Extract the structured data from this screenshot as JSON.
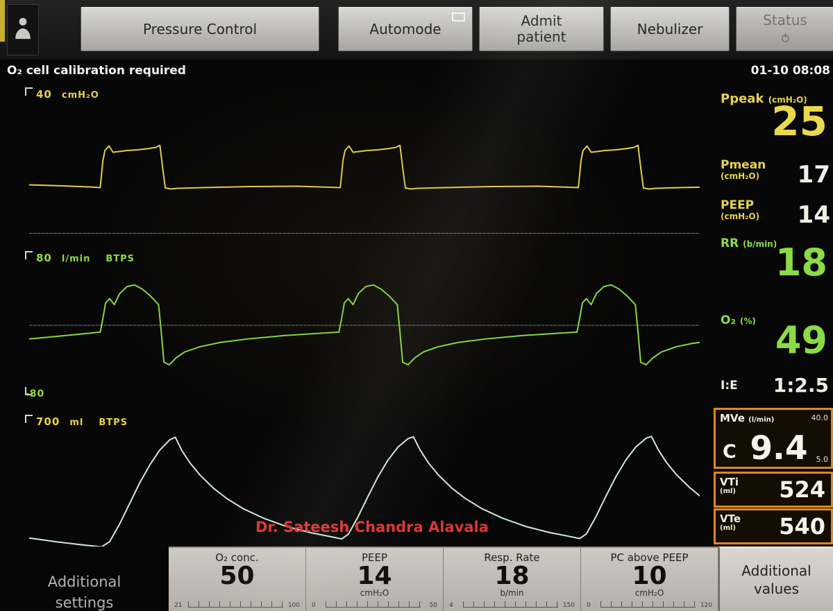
{
  "colors": {
    "yellow": "#e6d24a",
    "green": "#8bdc44",
    "cyan": "#cfe9dc",
    "orange": "#dd8a1e",
    "white": "#efeee3",
    "red": "#de3434"
  },
  "top_bar": {
    "buttons": [
      {
        "label": "Pressure Control"
      },
      {
        "label": "Automode"
      },
      {
        "label": "Admit\npatient"
      },
      {
        "label": "Nebulizer"
      },
      {
        "label": "Status"
      }
    ]
  },
  "status_row": {
    "alert": "O₂ cell calibration required",
    "datetime": "01-10  08:08"
  },
  "waveform_labels": {
    "pressure_scale": "40",
    "pressure_unit": "cmH₂O",
    "flow_scale": "80",
    "flow_unit": "l/min",
    "flow_btps": "BTPS",
    "flow_min": "-80",
    "volume_scale": "700",
    "volume_unit": "ml",
    "volume_btps": "BTPS"
  },
  "measurements": {
    "ppeak": {
      "label": "Ppeak",
      "unit": "(cmH₂O)",
      "value": "25"
    },
    "pmean": {
      "label": "Pmean",
      "unit": "(cmH₂O)",
      "value": "17"
    },
    "peep": {
      "label": "PEEP",
      "unit": "(cmH₂O)",
      "value": "14"
    },
    "rr": {
      "label": "RR",
      "unit": "(b/min)",
      "value": "18"
    },
    "o2": {
      "label": "O₂",
      "unit": "(%)",
      "value": "49"
    },
    "ie": {
      "label": "I:E",
      "value": "1:2.5"
    },
    "mve": {
      "label": "MVe",
      "unit": "(l/min)",
      "prefix": "C",
      "value": "9.4",
      "limit_high": "40.0",
      "limit_low": "5.0"
    },
    "vti": {
      "label": "VTi",
      "unit": "(ml)",
      "value": "524"
    },
    "vte": {
      "label": "VTe",
      "unit": "(ml)",
      "value": "540"
    }
  },
  "bottom_bar": {
    "left_button": {
      "line1": "Additional",
      "line2": "settings"
    },
    "right_button": {
      "line1": "Additional",
      "line2": "values"
    },
    "params": [
      {
        "label": "O₂ conc.",
        "value": "50",
        "unit": "",
        "scale_min": "21",
        "scale_max": "100"
      },
      {
        "label": "PEEP",
        "value": "14",
        "unit": "cmH₂O",
        "scale_min": "0",
        "scale_max": "50"
      },
      {
        "label": "Resp. Rate",
        "value": "18",
        "unit": "b/min",
        "scale_min": "4",
        "scale_max": "150"
      },
      {
        "label": "PC above PEEP",
        "value": "10",
        "unit": "cmH₂O",
        "scale_min": "0",
        "scale_max": "120"
      }
    ]
  },
  "watermark": "Dr. Sateesh Chandra Alavala",
  "chart_data": [
    {
      "type": "line",
      "name": "pressure",
      "title": "Airway pressure waveform",
      "ylabel": "cmH₂O",
      "ylim": [
        -1.5,
        42.5
      ],
      "zero_line": true,
      "stroke": "#e3cf45",
      "points": [
        [
          0,
          14.0
        ],
        [
          5,
          13.7
        ],
        [
          9,
          13.4
        ],
        [
          10.6,
          13.2
        ],
        [
          11.0,
          21
        ],
        [
          11.3,
          23.9
        ],
        [
          11.9,
          25.2
        ],
        [
          12.5,
          23.4
        ],
        [
          13.4,
          23.6
        ],
        [
          14.6,
          23.9
        ],
        [
          16.2,
          24.1
        ],
        [
          17.6,
          24.4
        ],
        [
          18.9,
          24.8
        ],
        [
          19.5,
          25.4
        ],
        [
          19.9,
          19
        ],
        [
          20.3,
          13.1
        ],
        [
          21.1,
          12.8
        ],
        [
          22.2,
          13.0
        ],
        [
          26,
          13.2
        ],
        [
          33,
          13.5
        ],
        [
          40,
          13.6
        ],
        [
          46.4,
          13.2
        ],
        [
          46.8,
          21
        ],
        [
          47.1,
          23.9
        ],
        [
          47.7,
          25.2
        ],
        [
          48.3,
          23.4
        ],
        [
          49.2,
          23.6
        ],
        [
          50.4,
          23.9
        ],
        [
          52.0,
          24.1
        ],
        [
          53.4,
          24.4
        ],
        [
          54.7,
          24.8
        ],
        [
          55.3,
          25.4
        ],
        [
          55.7,
          19
        ],
        [
          56.1,
          13.1
        ],
        [
          56.9,
          12.8
        ],
        [
          58.0,
          13.0
        ],
        [
          62,
          13.2
        ],
        [
          69,
          13.5
        ],
        [
          76,
          13.6
        ],
        [
          81.9,
          13.2
        ],
        [
          82.3,
          21
        ],
        [
          82.6,
          23.9
        ],
        [
          83.2,
          25.2
        ],
        [
          83.8,
          23.4
        ],
        [
          84.7,
          23.6
        ],
        [
          85.9,
          23.9
        ],
        [
          87.5,
          24.1
        ],
        [
          88.9,
          24.4
        ],
        [
          90.2,
          24.8
        ],
        [
          90.8,
          25.4
        ],
        [
          91.2,
          19
        ],
        [
          91.6,
          13.1
        ],
        [
          92.4,
          12.8
        ],
        [
          93.5,
          13.0
        ],
        [
          97,
          13.2
        ],
        [
          100,
          13.3
        ]
      ]
    },
    {
      "type": "line",
      "name": "flow",
      "title": "Flow waveform",
      "ylabel": "l/min",
      "ylim": [
        -88,
        88
      ],
      "zero_line": true,
      "stroke": "#86d93e",
      "points": [
        [
          0,
          -16
        ],
        [
          4,
          -13
        ],
        [
          8,
          -10
        ],
        [
          10.6,
          -8
        ],
        [
          11.0,
          8
        ],
        [
          11.4,
          26
        ],
        [
          12.0,
          31
        ],
        [
          12.7,
          24
        ],
        [
          13.5,
          37
        ],
        [
          14.6,
          45
        ],
        [
          15.7,
          47
        ],
        [
          16.9,
          42
        ],
        [
          18.1,
          34
        ],
        [
          19.3,
          24
        ],
        [
          19.7,
          -8
        ],
        [
          20.1,
          -43
        ],
        [
          20.9,
          -46
        ],
        [
          21.9,
          -38
        ],
        [
          23.2,
          -31
        ],
        [
          25.5,
          -25
        ],
        [
          28.5,
          -20
        ],
        [
          32.5,
          -16
        ],
        [
          38,
          -12
        ],
        [
          44,
          -9
        ],
        [
          46.2,
          -8
        ],
        [
          46.6,
          8
        ],
        [
          47.0,
          26
        ],
        [
          47.6,
          31
        ],
        [
          48.3,
          24
        ],
        [
          49.1,
          37
        ],
        [
          50.2,
          45
        ],
        [
          51.3,
          47
        ],
        [
          52.5,
          42
        ],
        [
          53.7,
          34
        ],
        [
          54.9,
          24
        ],
        [
          55.3,
          -8
        ],
        [
          55.7,
          -43
        ],
        [
          56.5,
          -46
        ],
        [
          57.5,
          -38
        ],
        [
          58.8,
          -31
        ],
        [
          61,
          -25
        ],
        [
          64,
          -20
        ],
        [
          68,
          -16
        ],
        [
          73.5,
          -12
        ],
        [
          79.5,
          -9
        ],
        [
          81.7,
          -8
        ],
        [
          82.1,
          8
        ],
        [
          82.5,
          26
        ],
        [
          83.1,
          31
        ],
        [
          83.8,
          24
        ],
        [
          84.6,
          37
        ],
        [
          85.7,
          45
        ],
        [
          86.8,
          47
        ],
        [
          88.0,
          42
        ],
        [
          89.2,
          34
        ],
        [
          90.4,
          24
        ],
        [
          90.8,
          -8
        ],
        [
          91.2,
          -43
        ],
        [
          92.0,
          -46
        ],
        [
          93.0,
          -38
        ],
        [
          94.3,
          -31
        ],
        [
          96.5,
          -25
        ],
        [
          99,
          -21
        ],
        [
          100,
          -20
        ]
      ]
    },
    {
      "type": "line",
      "name": "volume",
      "title": "Volume waveform",
      "ylabel": "ml",
      "ylim": [
        0,
        740
      ],
      "zero_line": false,
      "stroke": "#cfe9dc",
      "points": [
        [
          0,
          75
        ],
        [
          4,
          55
        ],
        [
          8,
          38
        ],
        [
          10.8,
          28
        ],
        [
          12,
          55
        ],
        [
          13.5,
          150
        ],
        [
          15,
          260
        ],
        [
          16.5,
          370
        ],
        [
          18,
          465
        ],
        [
          19.5,
          545
        ],
        [
          21,
          600
        ],
        [
          21.8,
          612
        ],
        [
          22.8,
          540
        ],
        [
          24,
          475
        ],
        [
          25.5,
          410
        ],
        [
          27.5,
          340
        ],
        [
          29.5,
          285
        ],
        [
          32,
          230
        ],
        [
          35,
          180
        ],
        [
          38.5,
          135
        ],
        [
          42,
          103
        ],
        [
          45,
          82
        ],
        [
          46.6,
          70
        ],
        [
          47.6,
          95
        ],
        [
          49,
          185
        ],
        [
          50.5,
          295
        ],
        [
          52,
          400
        ],
        [
          53.5,
          490
        ],
        [
          55,
          560
        ],
        [
          56.5,
          605
        ],
        [
          57.3,
          615
        ],
        [
          58.3,
          545
        ],
        [
          59.5,
          478
        ],
        [
          61,
          412
        ],
        [
          63,
          342
        ],
        [
          65,
          287
        ],
        [
          67.5,
          232
        ],
        [
          70.5,
          182
        ],
        [
          74,
          137
        ],
        [
          77.5,
          105
        ],
        [
          80.5,
          84
        ],
        [
          82.1,
          72
        ],
        [
          83.1,
          97
        ],
        [
          84.5,
          187
        ],
        [
          86,
          297
        ],
        [
          87.5,
          402
        ],
        [
          89,
          492
        ],
        [
          90.5,
          562
        ],
        [
          92,
          607
        ],
        [
          92.8,
          617
        ],
        [
          93.8,
          547
        ],
        [
          95,
          480
        ],
        [
          96.5,
          414
        ],
        [
          98.5,
          344
        ],
        [
          100,
          300
        ]
      ]
    }
  ]
}
